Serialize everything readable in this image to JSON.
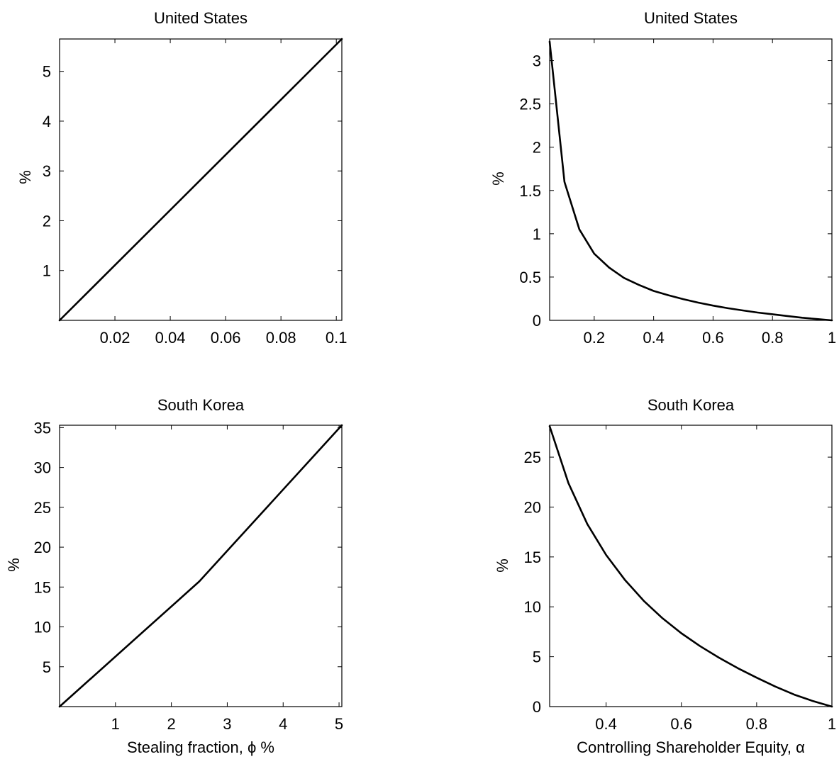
{
  "figure": {
    "panels": [
      {
        "id": "top-left",
        "title": "United States",
        "ylabel": "%",
        "xlabel": ""
      },
      {
        "id": "top-right",
        "title": "United States",
        "ylabel": "%",
        "xlabel": ""
      },
      {
        "id": "bottom-left",
        "title": "South Korea",
        "ylabel": "%",
        "xlabel": "Stealing fraction, ϕ %"
      },
      {
        "id": "bottom-right",
        "title": "South Korea",
        "ylabel": "%",
        "xlabel": "Controlling Shareholder Equity, α"
      }
    ]
  },
  "chart_data": [
    {
      "type": "line",
      "title": "United States",
      "xlabel": "",
      "ylabel": "%",
      "xlim": [
        0,
        0.102
      ],
      "ylim": [
        0,
        5.65
      ],
      "xticks": [
        0.02,
        0.04,
        0.06,
        0.08,
        0.1
      ],
      "xtick_labels": [
        "0.02",
        "0.04",
        "0.06",
        "0.08",
        "0.1"
      ],
      "yticks": [
        1,
        2,
        3,
        4,
        5
      ],
      "ytick_labels": [
        "1",
        "2",
        "3",
        "4",
        "5"
      ],
      "grid": false,
      "series": [
        {
          "x": [
            0,
            0.102
          ],
          "y": [
            0,
            5.65
          ]
        }
      ]
    },
    {
      "type": "line",
      "title": "United States",
      "xlabel": "",
      "ylabel": "%",
      "xlim": [
        0.05,
        1
      ],
      "ylim": [
        0,
        3.25
      ],
      "xticks": [
        0.2,
        0.4,
        0.6,
        0.8,
        1
      ],
      "xtick_labels": [
        "0.2",
        "0.4",
        "0.6",
        "0.8",
        "1"
      ],
      "yticks": [
        0,
        0.5,
        1,
        1.5,
        2,
        2.5,
        3
      ],
      "ytick_labels": [
        "0",
        "0.5",
        "1",
        "1.5",
        "2",
        "2.5",
        "3"
      ],
      "grid": false,
      "series": [
        {
          "x": [
            0.05,
            0.1,
            0.15,
            0.2,
            0.25,
            0.3,
            0.35,
            0.4,
            0.45,
            0.5,
            0.55,
            0.6,
            0.65,
            0.7,
            0.75,
            0.8,
            0.85,
            0.9,
            0.95,
            1.0
          ],
          "y": [
            3.22,
            1.6,
            1.05,
            0.77,
            0.61,
            0.49,
            0.41,
            0.34,
            0.29,
            0.245,
            0.205,
            0.17,
            0.14,
            0.115,
            0.09,
            0.07,
            0.05,
            0.03,
            0.015,
            0
          ]
        }
      ]
    },
    {
      "type": "line",
      "title": "South Korea",
      "xlabel": "Stealing fraction, ϕ %",
      "ylabel": "%",
      "xlim": [
        0,
        5.05
      ],
      "ylim": [
        0,
        35.3
      ],
      "xticks": [
        1,
        2,
        3,
        4,
        5
      ],
      "xtick_labels": [
        "1",
        "2",
        "3",
        "4",
        "5"
      ],
      "yticks": [
        5,
        10,
        15,
        20,
        25,
        30,
        35
      ],
      "ytick_labels": [
        "5",
        "10",
        "15",
        "20",
        "25",
        "30",
        "35"
      ],
      "grid": false,
      "series": [
        {
          "x": [
            0,
            2.5,
            5.05
          ],
          "y": [
            0,
            15.7,
            35.3
          ]
        }
      ]
    },
    {
      "type": "line",
      "title": "South Korea",
      "xlabel": "Controlling Shareholder Equity, α",
      "ylabel": "%",
      "xlim": [
        0.25,
        1
      ],
      "ylim": [
        0,
        28.2
      ],
      "xticks": [
        0.4,
        0.6,
        0.8,
        1
      ],
      "xtick_labels": [
        "0.4",
        "0.6",
        "0.8",
        "1"
      ],
      "yticks": [
        0,
        5,
        10,
        15,
        20,
        25
      ],
      "ytick_labels": [
        "0",
        "5",
        "10",
        "15",
        "20",
        "25"
      ],
      "grid": false,
      "series": [
        {
          "x": [
            0.25,
            0.3,
            0.35,
            0.4,
            0.45,
            0.5,
            0.55,
            0.6,
            0.65,
            0.7,
            0.75,
            0.8,
            0.85,
            0.9,
            0.95,
            1.0
          ],
          "y": [
            28.1,
            22.4,
            18.3,
            15.2,
            12.7,
            10.6,
            8.85,
            7.35,
            6.05,
            4.9,
            3.85,
            2.9,
            2.0,
            1.2,
            0.55,
            0
          ]
        }
      ]
    }
  ]
}
